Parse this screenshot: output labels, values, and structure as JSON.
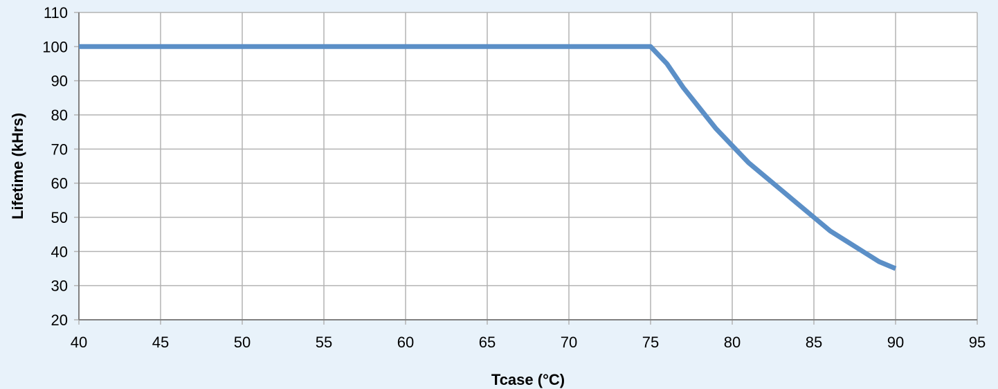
{
  "chart_data": {
    "type": "line",
    "title": "",
    "xlabel": "Tcase (°C)",
    "ylabel": "Lifetime (kHrs)",
    "xlim": [
      40,
      95
    ],
    "ylim": [
      20,
      110
    ],
    "x_ticks": [
      40,
      45,
      50,
      55,
      60,
      65,
      70,
      75,
      80,
      85,
      90,
      95
    ],
    "y_ticks": [
      20,
      30,
      40,
      50,
      60,
      70,
      80,
      90,
      100,
      110
    ],
    "grid": true,
    "legend": "none",
    "series": [
      {
        "color": "#5b8fc7",
        "points": [
          [
            40,
            100
          ],
          [
            45,
            100
          ],
          [
            50,
            100
          ],
          [
            55,
            100
          ],
          [
            60,
            100
          ],
          [
            65,
            100
          ],
          [
            70,
            100
          ],
          [
            75,
            100
          ],
          [
            76,
            95
          ],
          [
            77,
            88
          ],
          [
            78,
            82
          ],
          [
            79,
            76
          ],
          [
            80,
            71
          ],
          [
            81,
            66
          ],
          [
            82,
            62
          ],
          [
            83,
            58
          ],
          [
            84,
            54
          ],
          [
            85,
            50
          ],
          [
            86,
            46
          ],
          [
            87,
            43
          ],
          [
            88,
            40
          ],
          [
            89,
            37
          ],
          [
            90,
            35
          ]
        ]
      }
    ],
    "colors": {
      "background": "#e8f2fa",
      "plot_area": "#ffffff",
      "grid": "#b3b3b3",
      "axis": "#808080"
    }
  }
}
